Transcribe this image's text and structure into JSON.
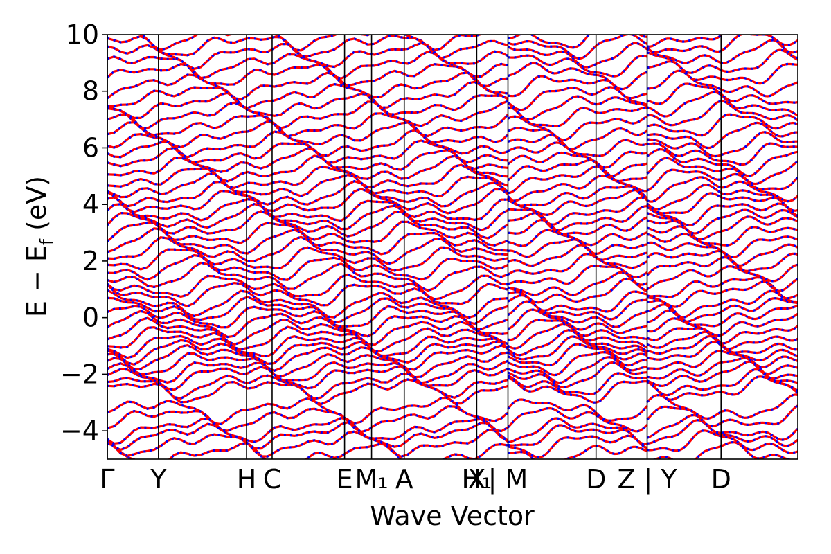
{
  "chart_data": {
    "type": "line",
    "title": "",
    "xlabel": "Wave Vector",
    "ylabel": "E − E_f (eV)",
    "ylabel_parts": {
      "main": "E − E",
      "sub": "f",
      "unit": " (eV)"
    },
    "ylim": [
      -5,
      10
    ],
    "yticks": [
      -4,
      -2,
      0,
      2,
      4,
      6,
      8,
      10
    ],
    "ytick_labels": [
      "−4",
      "−2",
      "0",
      "2",
      "4",
      "6",
      "8",
      "10"
    ],
    "xlim": [
      0,
      24.3
    ],
    "kpoints": [
      {
        "x": 0.0,
        "label": "Γ"
      },
      {
        "x": 1.8,
        "label": "Y"
      },
      {
        "x": 4.9,
        "label": "H"
      },
      {
        "x": 5.8,
        "label": "C"
      },
      {
        "x": 8.35,
        "label": "E"
      },
      {
        "x": 9.3,
        "label": "M₁"
      },
      {
        "x": 10.45,
        "label": "A"
      },
      {
        "x": 13.0,
        "label": "X"
      },
      {
        "x": 13.0,
        "label": "H₁"
      },
      {
        "x": 14.1,
        "label": "| M"
      },
      {
        "x": 17.2,
        "label": "D"
      },
      {
        "x": 19.0,
        "label": "Z | Y"
      },
      {
        "x": 21.6,
        "label": "D"
      }
    ],
    "segment_breaks": [
      14.1,
      19.0
    ],
    "series": [
      {
        "color": "#ff0000",
        "style": "solid",
        "width": 3.2
      },
      {
        "color": "#0000ff",
        "style": "dotted",
        "width": 3.2
      }
    ],
    "band_seeds": [
      -4.85,
      -4.45,
      -4.15,
      -3.95,
      -3.55,
      -3.25,
      -2.55,
      -2.35,
      -2.05,
      -1.85,
      -1.6,
      -1.35,
      -1.15,
      -0.95,
      -0.7,
      -0.45,
      -0.2,
      0.05,
      0.3,
      0.5,
      0.85,
      1.1,
      1.45,
      1.75,
      2.05,
      2.35,
      2.65,
      2.95,
      3.25,
      3.5,
      3.75,
      4.05,
      4.3,
      4.6,
      4.9,
      5.2,
      5.5,
      5.8,
      6.1,
      6.45,
      6.8,
      7.15,
      7.5,
      7.85,
      8.2,
      8.6,
      8.95,
      9.3,
      9.65,
      9.95
    ],
    "grid": false
  }
}
